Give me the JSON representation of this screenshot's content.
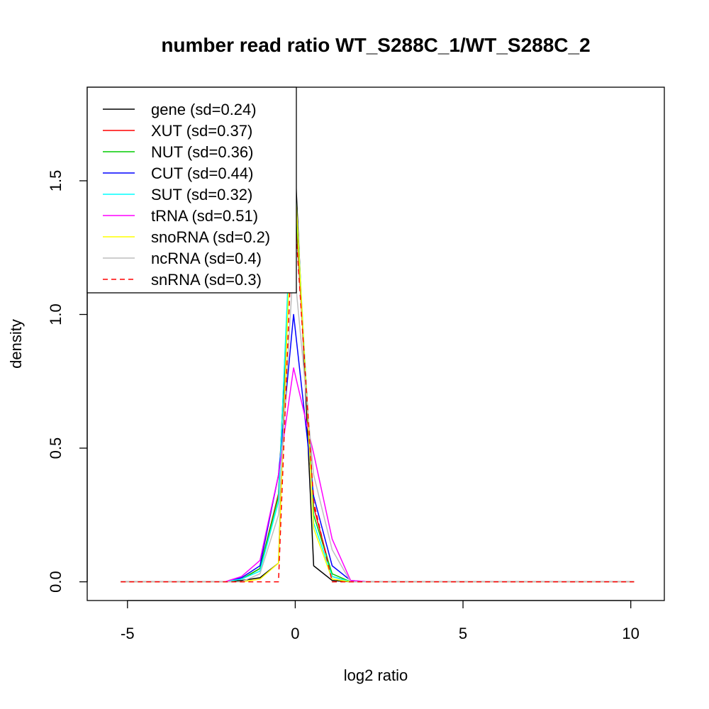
{
  "chart_data": {
    "type": "line",
    "title": "number read ratio WT_S288C_1/WT_S288C_2",
    "xlabel": "log2 ratio",
    "ylabel": "density",
    "xlim": [
      -6.2,
      11.0
    ],
    "ylim": [
      -0.07,
      1.85
    ],
    "xticks": [
      -5,
      0,
      5,
      10
    ],
    "yticks": [
      0.0,
      0.5,
      1.0,
      1.5
    ],
    "grid": false,
    "legend_position": "top-left",
    "x": [
      -5.2,
      -2.1,
      -1.6,
      -1.05,
      -0.5,
      -0.05,
      0.55,
      1.1,
      1.65,
      2.2,
      10.1
    ],
    "series": [
      {
        "name": "gene (sd=0.24)",
        "color": "#000000",
        "dash": "solid",
        "values": [
          0,
          0,
          0.005,
          0.015,
          0.07,
          1.68,
          0.06,
          0.005,
          0,
          0,
          0
        ]
      },
      {
        "name": "XUT (sd=0.37)",
        "color": "#ff0000",
        "dash": "solid",
        "values": [
          0,
          0,
          0.01,
          0.05,
          0.33,
          1.5,
          0.28,
          0.02,
          0,
          0,
          0
        ]
      },
      {
        "name": "NUT (sd=0.36)",
        "color": "#00cc00",
        "dash": "solid",
        "values": [
          0,
          0,
          0.01,
          0.05,
          0.32,
          1.55,
          0.25,
          0.03,
          0,
          0,
          0
        ]
      },
      {
        "name": "CUT (sd=0.44)",
        "color": "#0000ff",
        "dash": "solid",
        "values": [
          0,
          0,
          0.015,
          0.06,
          0.4,
          1.0,
          0.32,
          0.06,
          0.005,
          0,
          0
        ]
      },
      {
        "name": "SUT (sd=0.32)",
        "color": "#00ffff",
        "dash": "solid",
        "values": [
          0,
          0,
          0.01,
          0.04,
          0.3,
          1.6,
          0.22,
          0.02,
          0,
          0,
          0
        ]
      },
      {
        "name": "tRNA (sd=0.51)",
        "color": "#ff00ff",
        "dash": "solid",
        "values": [
          0,
          0,
          0.02,
          0.08,
          0.4,
          0.8,
          0.48,
          0.16,
          0.005,
          0,
          0
        ]
      },
      {
        "name": "snoRNA (sd=0.2)",
        "color": "#ffff00",
        "dash": "solid",
        "values": [
          0,
          0,
          0,
          0.01,
          0.07,
          1.6,
          0.2,
          0.01,
          0,
          0,
          0
        ]
      },
      {
        "name": "ncRNA (sd=0.4)",
        "color": "#bebebe",
        "dash": "solid",
        "values": [
          0,
          0,
          0,
          0.03,
          0.25,
          1.2,
          0.4,
          0.12,
          0,
          0,
          0
        ]
      },
      {
        "name": "snRNA (sd=0.3)",
        "color": "#ff0000",
        "dash": "dashed",
        "values": [
          0,
          0,
          0,
          0,
          0,
          1.45,
          0.3,
          0,
          0,
          0,
          0
        ]
      }
    ]
  }
}
